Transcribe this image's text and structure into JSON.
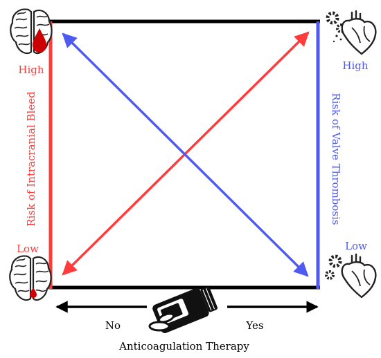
{
  "labels": {
    "left_high": "High",
    "left_low": "Low",
    "right_high": "High",
    "right_low": "Low",
    "left_axis": "Risk of Intracranial Bleed",
    "right_axis": "Risk of Valve Thrombosis",
    "bottom_no": "No",
    "bottom_yes": "Yes",
    "bottom_title": "Anticoagulation Therapy"
  },
  "colors": {
    "bleed": "#ff3b3b",
    "thrombosis": "#4f5bf0",
    "frame": "#000000",
    "blood": "#cc0000"
  },
  "icons": {
    "top_left": "brain-large-bleed-icon",
    "bottom_left": "brain-small-bleed-icon",
    "top_right": "heart-gears-icon",
    "bottom_right": "heart-gears-icon",
    "bottom_center": "pill-bottle-icon"
  }
}
